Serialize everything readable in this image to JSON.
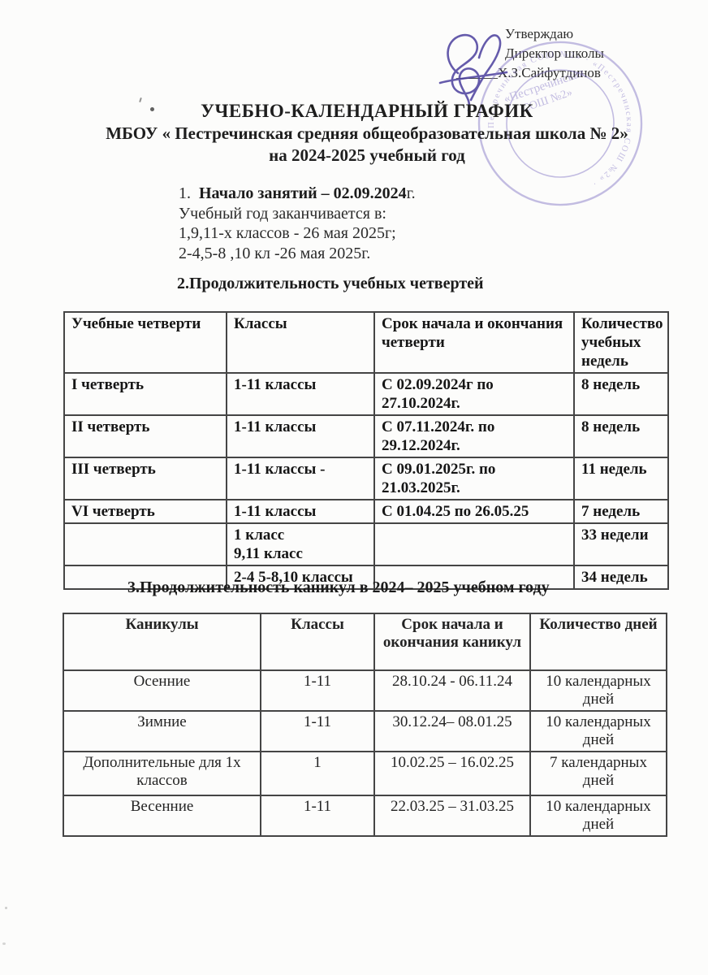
{
  "approval": {
    "approve_label": "Утверждаю",
    "role": "Директор школы",
    "underline": "______",
    "name": "Х.З.Сайфутдинов"
  },
  "stamp": {
    "center_line1": "«Пестречинская",
    "center_line2": "СОШ №2»",
    "ring_text": "«Пестречинская СОШ №2»  ·  «Пестречинская СОШ №2»  ·",
    "ink_color": "#7e6fc2"
  },
  "signature": {
    "ink_color": "#4b3f9e"
  },
  "title": {
    "line1": "УЧЕБНО-КАЛЕНДАРНЫЙ ГРАФИК",
    "line2": "МБОУ  « Пестречинская средняя общеобразовательная школа № 2»",
    "line3": "на 2024-2025 учебный год"
  },
  "section1": {
    "number": "1.",
    "bold_text": "Начало занятий – 02.09.2024",
    "suffix": "г.",
    "line2": "Учебный год заканчивается в:",
    "line3": "1,9,11-х классов - 26 мая 2025г;",
    "line4": "2-4,5-8 ,10 кл -26 мая 2025г."
  },
  "section2": {
    "heading": "2.Продолжительность учебных четвертей",
    "table": {
      "headers": [
        "Учебные четверти",
        "Классы",
        "Срок начала и окончания четверти",
        "Количество учебных недель"
      ],
      "rows": [
        [
          "I четверть",
          "1-11 классы",
          "С 02.09.2024г по 27.10.2024г.",
          "8 недель"
        ],
        [
          "II четверть",
          "1-11 классы",
          "С 07.11.2024г. по 29.12.2024г.",
          "8 недель"
        ],
        [
          "III четверть",
          "1-11 классы -",
          "С 09.01.2025г. по 21.03.2025г.",
          "11 недель"
        ],
        [
          "VI четверть",
          "1-11 классы",
          "С 01.04.25 по 26.05.25",
          "7 недель"
        ],
        [
          "",
          "1 класс\n9,11 класс",
          "",
          "33 недели"
        ],
        [
          "",
          "2-4 5-8,10 классы",
          "",
          "34 недель"
        ]
      ]
    }
  },
  "section3": {
    "heading": "3.Продолжительность каникул в 2024– 2025 учебном году",
    "table": {
      "headers": [
        "Каникулы",
        "Классы",
        "Срок начала и окончания каникул",
        "Количество дней"
      ],
      "rows": [
        [
          "Осенние",
          "1-11",
          "28.10.24 -  06.11.24",
          "10 календарных дней"
        ],
        [
          "Зимние",
          "1-11",
          "30.12.24– 08.01.25",
          "10 календарных дней"
        ],
        [
          "Дополнительные для 1х классов",
          "1",
          "10.02.25 – 16.02.25",
          "7 календарных дней"
        ],
        [
          "Весенние",
          "1-11",
          "22.03.25 – 31.03.25",
          "10 календарных дней"
        ]
      ]
    }
  },
  "colors": {
    "ink": "#232323",
    "table_border": "#454545",
    "paper": "#fcfcfb"
  }
}
